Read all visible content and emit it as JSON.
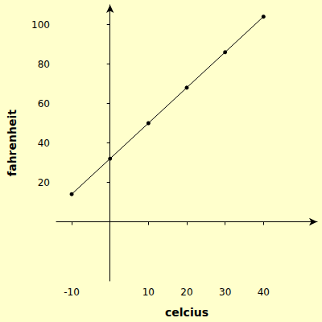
{
  "chart_data": {
    "type": "line",
    "xlabel": "celcius",
    "ylabel": "fahrenheit",
    "x": [
      -10,
      0,
      10,
      20,
      30,
      40
    ],
    "values": [
      14,
      32,
      50,
      68,
      86,
      104
    ],
    "color": "#000000",
    "marker": "circle",
    "xlim": [
      -14,
      54
    ],
    "xticks": [
      -10,
      10,
      20,
      30,
      40
    ],
    "ylim": [
      -30,
      110
    ],
    "yticks": [
      20,
      40,
      60,
      80,
      100
    ],
    "grid": false
  }
}
